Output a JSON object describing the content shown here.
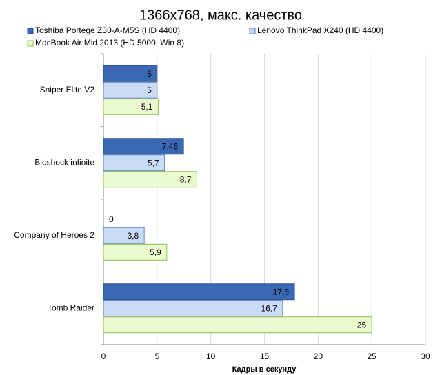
{
  "chart_data": {
    "type": "hbar",
    "title": "1366x768, макс. качество",
    "x_label": "Кадры  в секунду",
    "categories": [
      "Sniper Elite V2",
      "Bioshock infinite",
      "Company of Heroes 2",
      "Tomb Raider"
    ],
    "series": [
      {
        "name": "Toshiba Portege Z30-A-M5S (HD 4400)",
        "color": "#3b68b3",
        "values": [
          5,
          7.46,
          0,
          17.8
        ],
        "value_labels": [
          "5",
          "7,46",
          "0",
          "17,8"
        ]
      },
      {
        "name": "Lenovo ThinkPad X240 (HD 4400)",
        "color": "#c9dbf6",
        "values": [
          5,
          5.7,
          3.8,
          16.7
        ],
        "value_labels": [
          "5",
          "5,7",
          "3,8",
          "16,7"
        ]
      },
      {
        "name": "MacBook Air Mid 2013 (HD 5000, Win 8)",
        "color": "#ebf9cf",
        "values": [
          5.1,
          8.7,
          5.9,
          25
        ],
        "value_labels": [
          "5,1",
          "8,7",
          "5,9",
          "25"
        ]
      }
    ],
    "xlim": [
      0,
      30
    ],
    "xticks": [
      0,
      5,
      10,
      15,
      20,
      25,
      30
    ],
    "grid": true,
    "legend": "top"
  }
}
